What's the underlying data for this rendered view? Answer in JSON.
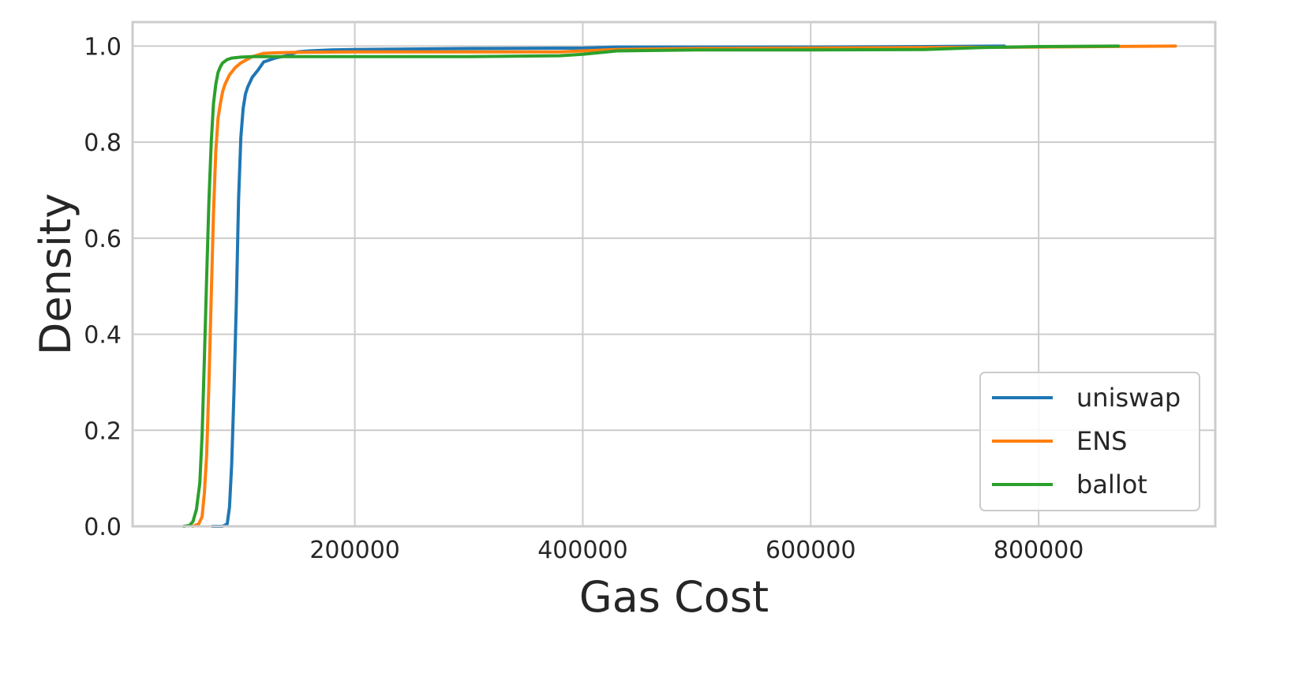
{
  "chart_data": {
    "type": "line",
    "title": "",
    "xlabel": "Gas Cost",
    "ylabel": "Density",
    "xlim": [
      5000,
      955000
    ],
    "ylim": [
      0,
      1.05
    ],
    "xticks": [
      200000,
      400000,
      600000,
      800000
    ],
    "xtick_labels": [
      "200000",
      "400000",
      "600000",
      "800000"
    ],
    "yticks": [
      0.0,
      0.2,
      0.4,
      0.6,
      0.8,
      1.0
    ],
    "ytick_labels": [
      "0.0",
      "0.2",
      "0.4",
      "0.6",
      "0.8",
      "1.0"
    ],
    "grid": true,
    "legend_position": "bottom-right",
    "series": [
      {
        "name": "uniswap",
        "color": "#1f77b4",
        "x": [
          75000,
          84000,
          88000,
          90000,
          92000,
          94000,
          96000,
          98000,
          100000,
          102000,
          104000,
          106000,
          108000,
          110000,
          115000,
          120000,
          130000,
          140000,
          150000,
          160000,
          180000,
          200000,
          300000,
          400000,
          430000,
          500000,
          600000,
          700000,
          770000
        ],
        "y": [
          0.0,
          0.0,
          0.005,
          0.04,
          0.13,
          0.28,
          0.46,
          0.68,
          0.81,
          0.87,
          0.9,
          0.915,
          0.925,
          0.935,
          0.95,
          0.967,
          0.975,
          0.98,
          0.988,
          0.99,
          0.992,
          0.993,
          0.995,
          0.996,
          0.998,
          0.998,
          0.998,
          0.999,
          1.0
        ]
      },
      {
        "name": "ENS",
        "color": "#ff7f0e",
        "x": [
          58000,
          63000,
          66000,
          68000,
          70000,
          72000,
          74000,
          76000,
          78000,
          80000,
          82000,
          84000,
          86000,
          88000,
          90000,
          95000,
          100000,
          110000,
          120000,
          130000,
          150000,
          200000,
          300000,
          380000,
          400000,
          430000,
          500000,
          600000,
          700000,
          800000,
          920000
        ],
        "y": [
          0.0,
          0.005,
          0.02,
          0.07,
          0.15,
          0.3,
          0.48,
          0.65,
          0.78,
          0.85,
          0.88,
          0.905,
          0.92,
          0.93,
          0.94,
          0.955,
          0.965,
          0.978,
          0.985,
          0.986,
          0.987,
          0.988,
          0.988,
          0.988,
          0.99,
          0.993,
          0.995,
          0.996,
          0.997,
          0.998,
          1.0
        ]
      },
      {
        "name": "ballot",
        "color": "#2ca02c",
        "x": [
          50000,
          55000,
          58000,
          61000,
          64000,
          66000,
          68000,
          70000,
          72000,
          74000,
          76000,
          78000,
          80000,
          82000,
          84000,
          88000,
          92000,
          96000,
          100000,
          110000,
          120000,
          140000,
          200000,
          300000,
          380000,
          400000,
          430000,
          500000,
          600000,
          700000,
          750000,
          800000,
          870000
        ],
        "y": [
          0.0,
          0.002,
          0.01,
          0.035,
          0.09,
          0.19,
          0.35,
          0.52,
          0.68,
          0.8,
          0.88,
          0.92,
          0.945,
          0.957,
          0.965,
          0.972,
          0.975,
          0.976,
          0.977,
          0.978,
          0.978,
          0.978,
          0.978,
          0.978,
          0.98,
          0.983,
          0.99,
          0.992,
          0.992,
          0.993,
          0.997,
          0.999,
          1.0
        ]
      }
    ]
  }
}
